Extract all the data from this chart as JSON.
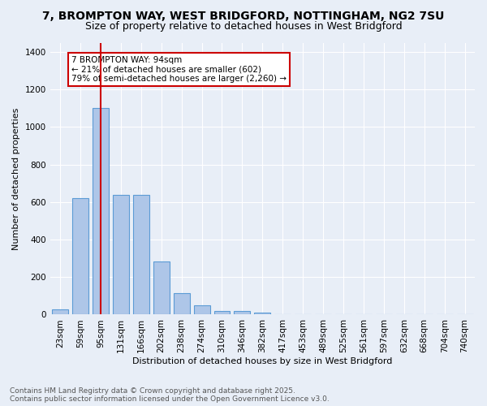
{
  "title_line1": "7, BROMPTON WAY, WEST BRIDGFORD, NOTTINGHAM, NG2 7SU",
  "title_line2": "Size of property relative to detached houses in West Bridgford",
  "xlabel": "Distribution of detached houses by size in West Bridgford",
  "ylabel": "Number of detached properties",
  "categories": [
    "23sqm",
    "59sqm",
    "95sqm",
    "131sqm",
    "166sqm",
    "202sqm",
    "238sqm",
    "274sqm",
    "310sqm",
    "346sqm",
    "382sqm",
    "417sqm",
    "453sqm",
    "489sqm",
    "525sqm",
    "561sqm",
    "597sqm",
    "632sqm",
    "668sqm",
    "704sqm",
    "740sqm"
  ],
  "values": [
    28,
    620,
    1100,
    640,
    640,
    285,
    115,
    48,
    20,
    20,
    12,
    0,
    0,
    0,
    0,
    0,
    0,
    0,
    0,
    0,
    0
  ],
  "bar_color": "#aec6e8",
  "bar_edge_color": "#5b9bd5",
  "bg_color": "#e8eef7",
  "grid_color": "#ffffff",
  "vline_x": 2,
  "vline_color": "#cc0000",
  "annotation_text": "7 BROMPTON WAY: 94sqm\n← 21% of detached houses are smaller (602)\n79% of semi-detached houses are larger (2,260) →",
  "annotation_box_color": "#ffffff",
  "annotation_box_edge": "#cc0000",
  "ylim": [
    0,
    1450
  ],
  "yticks": [
    0,
    200,
    400,
    600,
    800,
    1000,
    1200,
    1400
  ],
  "footer_line1": "Contains HM Land Registry data © Crown copyright and database right 2025.",
  "footer_line2": "Contains public sector information licensed under the Open Government Licence v3.0.",
  "title_fontsize": 10,
  "subtitle_fontsize": 9,
  "axis_label_fontsize": 8,
  "tick_fontsize": 7.5,
  "annotation_fontsize": 7.5,
  "footer_fontsize": 6.5
}
